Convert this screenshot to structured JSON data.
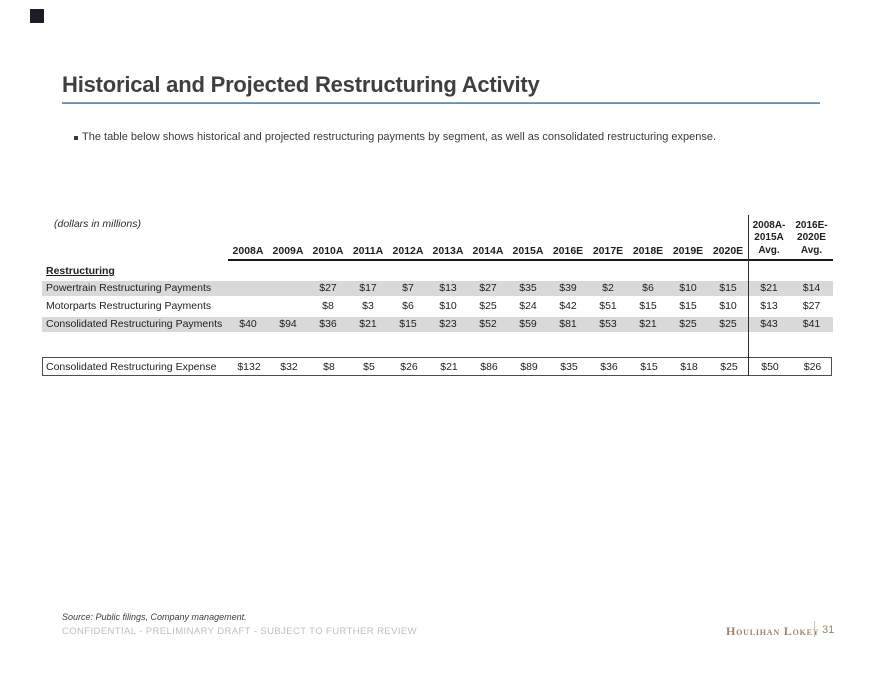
{
  "page": {
    "title": "Historical and Projected Restructuring Activity",
    "bullet": "The table below shows historical and projected restructuring payments by segment, as well as consolidated restructuring expense."
  },
  "colors": {
    "accent_rule": "#7FA2BE",
    "row_shade": "#D9D9D9",
    "brand": "#97856A"
  },
  "table": {
    "units_label": "(dollars in millions)",
    "section_label": "Restructuring",
    "columns": [
      "2008A",
      "2009A",
      "2010A",
      "2011A",
      "2012A",
      "2013A",
      "2014A",
      "2015A",
      "2016E",
      "2017E",
      "2018E",
      "2019E",
      "2020E"
    ],
    "avg_columns": [
      [
        "2008A-",
        "2015A",
        "Avg."
      ],
      [
        "2016E-",
        "2020E",
        "Avg."
      ]
    ],
    "rows": [
      {
        "label": "Powertrain Restructuring Payments",
        "shaded": true,
        "values": [
          "",
          "",
          "$27",
          "$17",
          "$7",
          "$13",
          "$27",
          "$35",
          "$39",
          "$2",
          "$6",
          "$10",
          "$15"
        ],
        "avgs": [
          "$21",
          "$14"
        ]
      },
      {
        "label": "Motorparts Restructuring Payments",
        "shaded": false,
        "values": [
          "",
          "",
          "$8",
          "$3",
          "$6",
          "$10",
          "$25",
          "$24",
          "$42",
          "$51",
          "$15",
          "$15",
          "$10"
        ],
        "avgs": [
          "$13",
          "$27"
        ]
      },
      {
        "label": "Consolidated Restructuring Payments",
        "shaded": true,
        "values": [
          "$40",
          "$94",
          "$36",
          "$21",
          "$15",
          "$23",
          "$52",
          "$59",
          "$81",
          "$53",
          "$21",
          "$25",
          "$25"
        ],
        "avgs": [
          "$43",
          "$41"
        ]
      }
    ],
    "total_row": {
      "label": "Consolidated Restructuring Expense",
      "values": [
        "$132",
        "$32",
        "$8",
        "$5",
        "$26",
        "$21",
        "$86",
        "$89",
        "$35",
        "$36",
        "$15",
        "$18",
        "$25"
      ],
      "avgs": [
        "$50",
        "$26"
      ]
    }
  },
  "footer": {
    "source": "Source: Public filings, Company management.",
    "confidential": "CONFIDENTIAL - PRELIMINARY DRAFT - SUBJECT TO FURTHER REVIEW",
    "brand": "Houlihan Lokey",
    "page_number": "31"
  }
}
